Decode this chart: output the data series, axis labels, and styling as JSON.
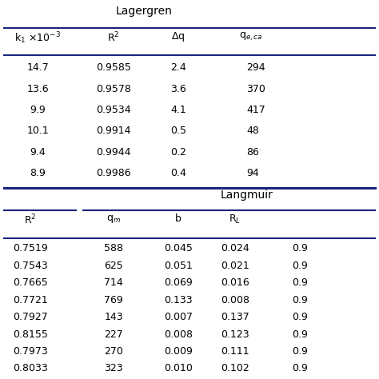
{
  "title_lagergren": "Lagergren",
  "title_langmuir": "Langmuir",
  "lagergren_data": [
    [
      "14.7",
      "0.9585",
      "2.4",
      "294"
    ],
    [
      "13.6",
      "0.9578",
      "3.6",
      "370"
    ],
    [
      "9.9",
      "0.9534",
      "4.1",
      "417"
    ],
    [
      "10.1",
      "0.9914",
      "0.5",
      "48"
    ],
    [
      "9.4",
      "0.9944",
      "0.2",
      "86"
    ],
    [
      "8.9",
      "0.9986",
      "0.4",
      "94"
    ]
  ],
  "langmuir_data": [
    [
      "0.7519",
      "588",
      "0.045",
      "0.024",
      "0.9"
    ],
    [
      "0.7543",
      "625",
      "0.051",
      "0.021",
      "0.9"
    ],
    [
      "0.7665",
      "714",
      "0.069",
      "0.016",
      "0.9"
    ],
    [
      "0.7721",
      "769",
      "0.133",
      "0.008",
      "0.9"
    ],
    [
      "0.7927",
      "143",
      "0.007",
      "0.137",
      "0.9"
    ],
    [
      "0.8155",
      "227",
      "0.008",
      "0.123",
      "0.9"
    ],
    [
      "0.7973",
      "270",
      "0.009",
      "0.111",
      "0.9"
    ],
    [
      "0.8033",
      "323",
      "0.010",
      "0.102",
      "0.9"
    ]
  ],
  "bg_color": "#ffffff",
  "line_color": "#1a237e",
  "text_color": "#000000",
  "font_size": 9
}
